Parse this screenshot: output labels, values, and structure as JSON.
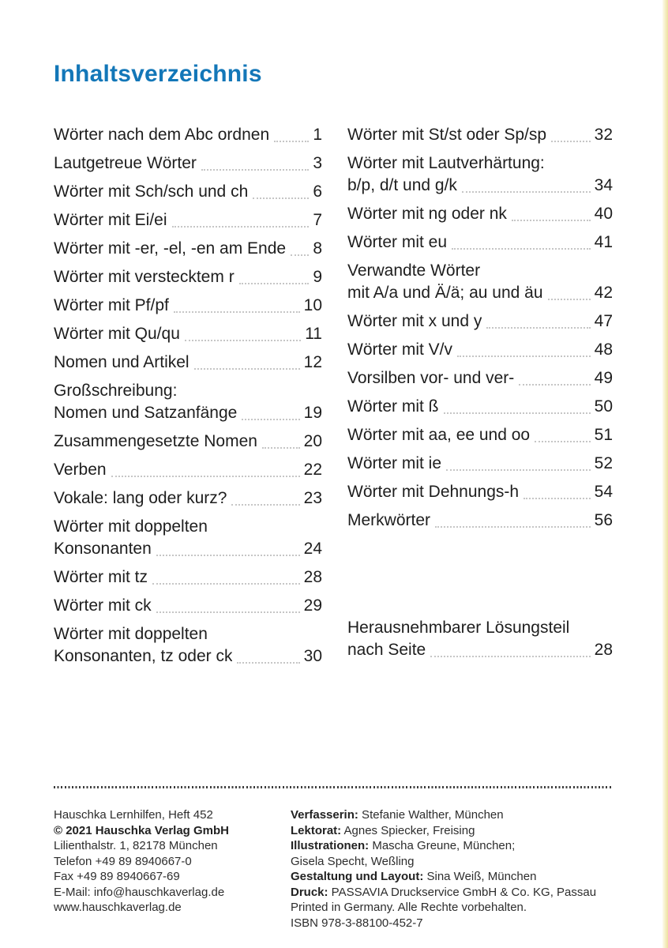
{
  "page": {
    "title": "Inhaltsverzeichnis",
    "accent_color": "#1377b8",
    "text_color": "#1e1e1e",
    "leader_color": "#c6c6c6",
    "edge_strip_color": "#f6efca"
  },
  "toc": {
    "left": [
      {
        "lines": [
          "Wörter nach dem Abc ordnen"
        ],
        "page": "1"
      },
      {
        "lines": [
          "Lautgetreue Wörter"
        ],
        "page": "3"
      },
      {
        "lines": [
          "Wörter mit Sch/sch und ch"
        ],
        "page": "6"
      },
      {
        "lines": [
          "Wörter mit Ei/ei"
        ],
        "page": "7"
      },
      {
        "lines": [
          "Wörter mit -er, -el, -en am Ende"
        ],
        "page": "8"
      },
      {
        "lines": [
          "Wörter mit verstecktem r"
        ],
        "page": "9"
      },
      {
        "lines": [
          "Wörter mit Pf/pf"
        ],
        "page": "10"
      },
      {
        "lines": [
          "Wörter mit Qu/qu"
        ],
        "page": "11"
      },
      {
        "lines": [
          "Nomen und Artikel"
        ],
        "page": "12"
      },
      {
        "lines": [
          "Großschreibung:",
          "Nomen und Satzanfänge"
        ],
        "page": "19"
      },
      {
        "lines": [
          "Zusammengesetzte Nomen"
        ],
        "page": "20"
      },
      {
        "lines": [
          "Verben"
        ],
        "page": "22"
      },
      {
        "lines": [
          "Vokale: lang oder kurz?"
        ],
        "page": "23"
      },
      {
        "lines": [
          "Wörter mit doppelten",
          "Konsonanten"
        ],
        "page": "24"
      },
      {
        "lines": [
          "Wörter mit tz"
        ],
        "page": "28"
      },
      {
        "lines": [
          "Wörter mit ck"
        ],
        "page": "29"
      },
      {
        "lines": [
          "Wörter mit doppelten",
          "Konsonanten, tz oder ck"
        ],
        "page": "30"
      }
    ],
    "right": [
      {
        "lines": [
          "Wörter mit St/st oder Sp/sp"
        ],
        "page": "32"
      },
      {
        "lines": [
          "Wörter mit Lautverhärtung:",
          "b/p, d/t und g/k"
        ],
        "page": "34"
      },
      {
        "lines": [
          "Wörter mit ng oder nk"
        ],
        "page": "40"
      },
      {
        "lines": [
          "Wörter mit eu"
        ],
        "page": "41"
      },
      {
        "lines": [
          "Verwandte Wörter",
          "mit A/a und Ä/ä; au und äu"
        ],
        "page": "42"
      },
      {
        "lines": [
          "Wörter mit x und y"
        ],
        "page": "47"
      },
      {
        "lines": [
          "Wörter mit V/v"
        ],
        "page": "48"
      },
      {
        "lines": [
          "Vorsilben vor- und ver-"
        ],
        "page": "49"
      },
      {
        "lines": [
          "Wörter mit ß"
        ],
        "page": "50"
      },
      {
        "lines": [
          "Wörter mit aa, ee und oo"
        ],
        "page": "51"
      },
      {
        "lines": [
          "Wörter mit ie"
        ],
        "page": "52"
      },
      {
        "lines": [
          "Wörter mit Dehnungs-h"
        ],
        "page": "54"
      },
      {
        "lines": [
          "Merkwörter"
        ],
        "page": "56"
      },
      {
        "lines": [
          "Herausnehmbarer Lösungsteil",
          "nach Seite"
        ],
        "page": "28",
        "gap_before": true
      }
    ]
  },
  "footer": {
    "left_lines": [
      {
        "text": "Hauschka Lernhilfen, Heft 452"
      },
      {
        "bold": "© 2021 Hauschka Verlag GmbH",
        "text": ""
      },
      {
        "text": "Lilienthalstr. 1, 82178 München"
      },
      {
        "text": "Telefon +49 89 8940667-0"
      },
      {
        "text": "Fax +49 89 8940667-69"
      },
      {
        "text": "E-Mail: info@hauschkaverlag.de"
      },
      {
        "text": "www.hauschkaverlag.de"
      }
    ],
    "right_lines": [
      {
        "bold": "Verfasserin:",
        "text": " Stefanie Walther, München"
      },
      {
        "bold": "Lektorat:",
        "text": " Agnes Spiecker, Freising"
      },
      {
        "bold": "Illustrationen:",
        "text": " Mascha Greune, München;"
      },
      {
        "text": "Gisela Specht, Weßling"
      },
      {
        "bold": "Gestaltung und Layout:",
        "text": " Sina Weiß, München"
      },
      {
        "bold": "Druck:",
        "text": " PASSAVIA Druckservice GmbH & Co. KG, Passau"
      },
      {
        "text": "Printed in Germany. Alle Rechte vorbehalten."
      },
      {
        "text": "ISBN 978-3-88100-452-7"
      }
    ]
  }
}
